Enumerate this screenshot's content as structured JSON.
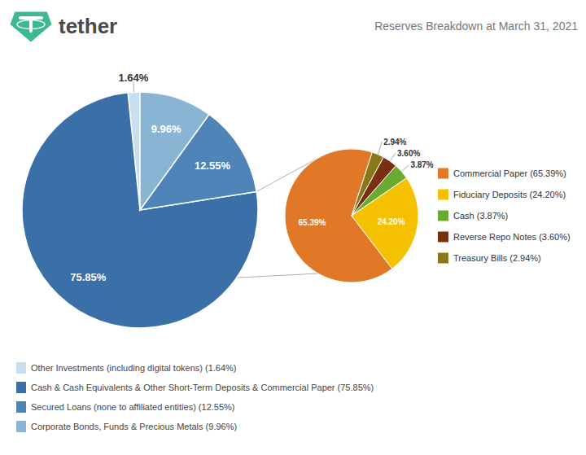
{
  "chart_data": [
    {
      "type": "pie",
      "title": "Reserves Breakdown at March 31, 2021",
      "annotations": [
        "tether"
      ],
      "categories": [
        "Other Investments (including digital tokens) (1.64%)",
        "Cash & Cash Equivalents & Other Short-Term Deposits & Commercial Paper (75.85%)",
        "Secured Loans (none to affiliated entities) (12.55%)",
        "Corporate Bonds, Funds & Precious Metals (9.96%)"
      ],
      "values": [
        1.64,
        75.85,
        12.55,
        9.96
      ],
      "value_labels": [
        "1.64%",
        "75.85%",
        "12.55%",
        "9.96%"
      ],
      "colors": [
        "#c8dff0",
        "#3a6fa8",
        "#4e84b8",
        "#8ab4d4"
      ],
      "data_labels": true,
      "legend": "bottom"
    },
    {
      "type": "pie",
      "categories": [
        "Commercial Paper (65.39%)",
        "Fiduciary Deposits (24.20%)",
        "Cash (3.87%)",
        "Reverse Repo Notes (3.60%)",
        "Treasury Bills (2.94%)"
      ],
      "values": [
        65.39,
        24.2,
        3.87,
        3.6,
        2.94
      ],
      "value_labels": [
        "65.39%",
        "24.20%",
        "3.87%",
        "3.60%",
        "2.94%"
      ],
      "colors": [
        "#e07828",
        "#f5c000",
        "#6aaa30",
        "#7a3010",
        "#8a7818"
      ],
      "data_labels": true,
      "legend": "right"
    }
  ]
}
